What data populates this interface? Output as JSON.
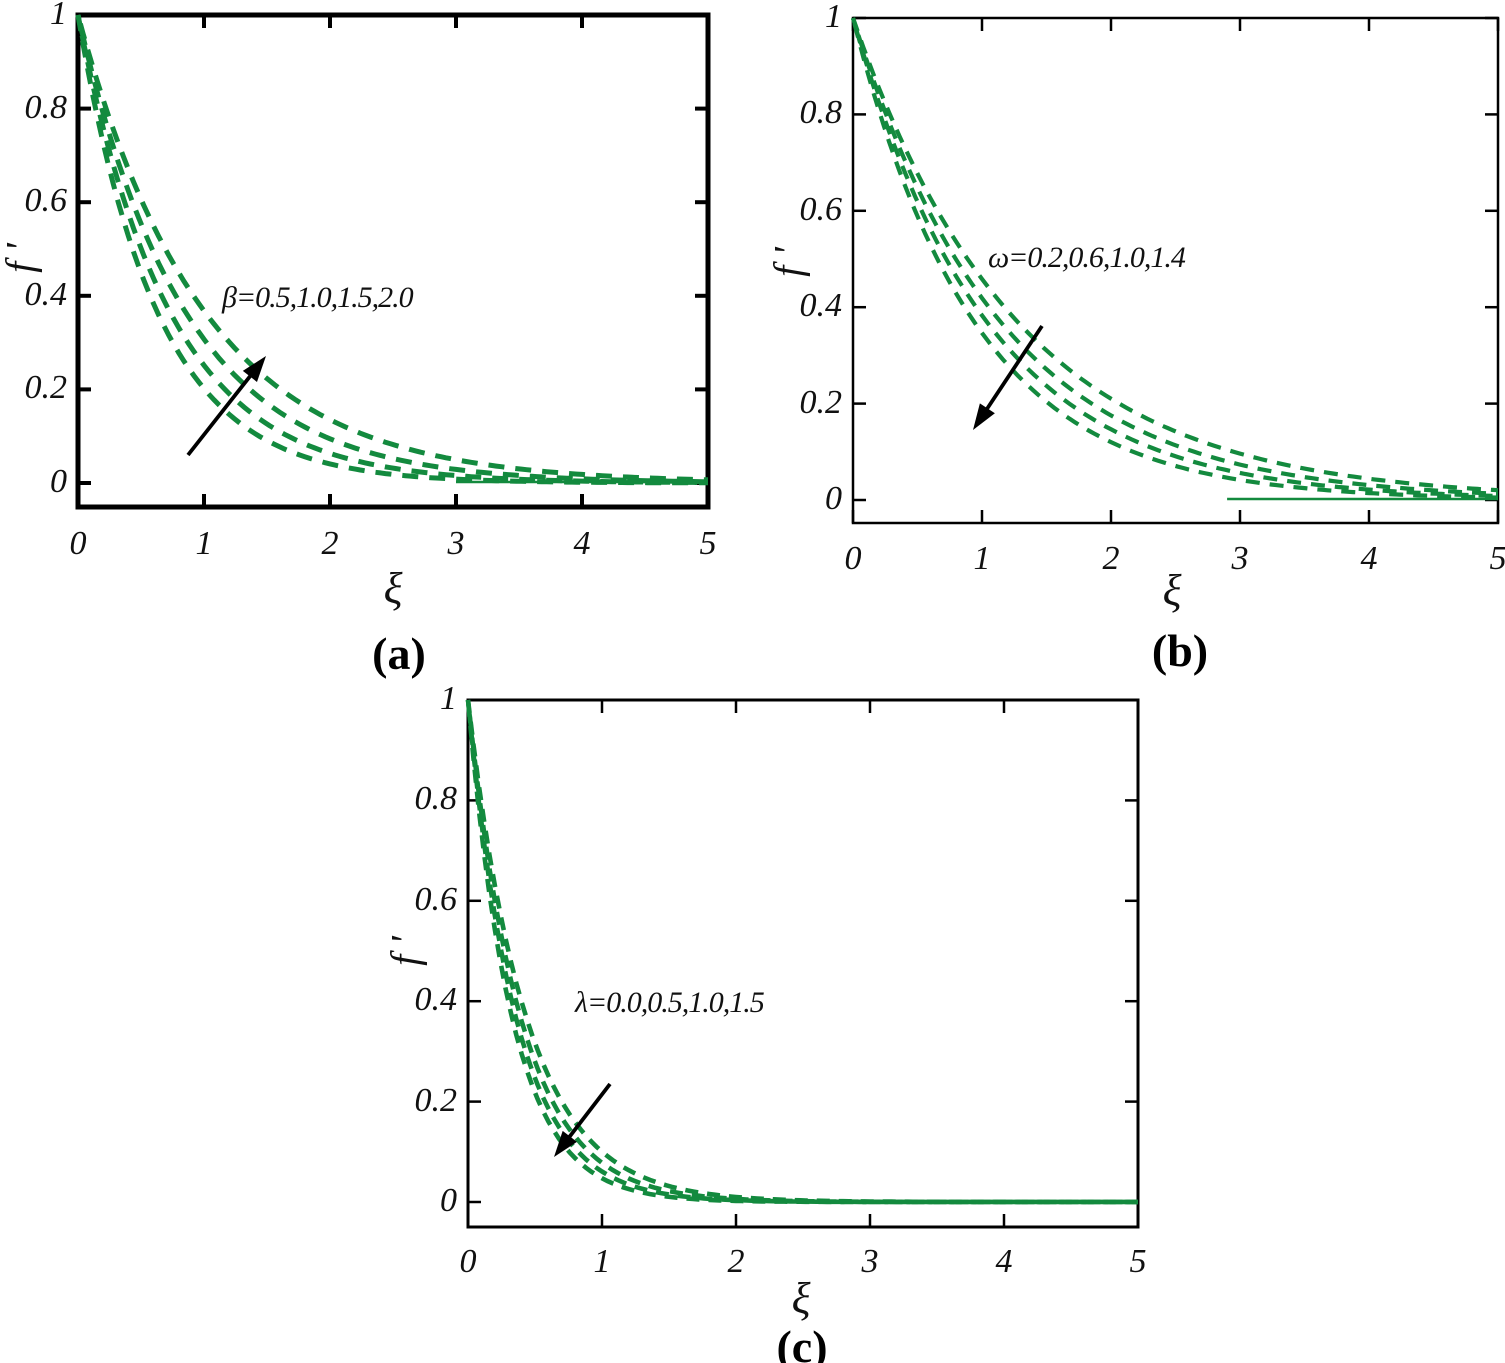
{
  "figure": {
    "background": "#ffffff",
    "curve_color": "#138a3e",
    "axis_color": "#000000",
    "arrow_color": "#000000"
  },
  "chart_data": [
    {
      "id": "a",
      "type": "line",
      "caption": "(a)",
      "xlabel": "ξ",
      "ylabel": "f '",
      "annotation": "β=0.5,1.0,1.5,2.0",
      "arrow_meaning": "increasing β raises the curves",
      "arrow_direction": "up-right",
      "line_style": "dashed",
      "xlim": [
        0,
        5
      ],
      "ylim": [
        -0.05,
        1
      ],
      "xticks": [
        "0",
        "1",
        "2",
        "3",
        "4",
        "5"
      ],
      "yticks": [
        "0",
        "0.2",
        "0.4",
        "0.6",
        "0.8",
        "1"
      ],
      "grid": "off",
      "legend": "none",
      "series": [
        {
          "name": "β=0.5",
          "k": 1.6,
          "x": [
            0,
            1,
            2,
            3,
            4,
            5
          ],
          "y": [
            1,
            0.202,
            0.041,
            0.008,
            0.002,
            0.0
          ]
        },
        {
          "name": "β=1.0",
          "k": 1.38,
          "x": [
            0,
            1,
            2,
            3,
            4,
            5
          ],
          "y": [
            1,
            0.252,
            0.063,
            0.016,
            0.004,
            0.001
          ]
        },
        {
          "name": "β=1.5",
          "k": 1.18,
          "x": [
            0,
            1,
            2,
            3,
            4,
            5
          ],
          "y": [
            1,
            0.307,
            0.094,
            0.029,
            0.009,
            0.003
          ]
        },
        {
          "name": "β=2.0",
          "k": 1.0,
          "x": [
            0,
            1,
            2,
            3,
            4,
            5
          ],
          "y": [
            1,
            0.368,
            0.135,
            0.05,
            0.018,
            0.007
          ]
        }
      ]
    },
    {
      "id": "b",
      "type": "line",
      "caption": "(b)",
      "xlabel": "ξ",
      "ylabel": "f '",
      "annotation": "ω=0.2,0.6,1.0,1.4",
      "arrow_meaning": "increasing ω lowers the curves",
      "arrow_direction": "down-left",
      "line_style": "dashed",
      "xlim": [
        0,
        5
      ],
      "ylim": [
        -0.05,
        1
      ],
      "xticks": [
        "0",
        "1",
        "2",
        "3",
        "4",
        "5"
      ],
      "yticks": [
        "0",
        "0.2",
        "0.4",
        "0.6",
        "0.8",
        "1"
      ],
      "grid": "off",
      "legend": "none",
      "series": [
        {
          "name": "ω=0.2",
          "k": 0.78,
          "x": [
            0,
            1,
            2,
            3,
            4,
            5
          ],
          "y": [
            1,
            0.458,
            0.21,
            0.096,
            0.044,
            0.02
          ]
        },
        {
          "name": "ω=0.6",
          "k": 0.87,
          "x": [
            0,
            1,
            2,
            3,
            4,
            5
          ],
          "y": [
            1,
            0.419,
            0.176,
            0.074,
            0.031,
            0.013
          ]
        },
        {
          "name": "ω=1.0",
          "k": 0.96,
          "x": [
            0,
            1,
            2,
            3,
            4,
            5
          ],
          "y": [
            1,
            0.383,
            0.147,
            0.056,
            0.022,
            0.008
          ]
        },
        {
          "name": "ω=1.4",
          "k": 1.06,
          "x": [
            0,
            1,
            2,
            3,
            4,
            5
          ],
          "y": [
            1,
            0.346,
            0.12,
            0.042,
            0.014,
            0.005
          ]
        }
      ]
    },
    {
      "id": "c",
      "type": "line",
      "caption": "(c)",
      "xlabel": "ξ",
      "ylabel": "f '",
      "annotation": "λ=0.0,0.5,1.0,1.5",
      "arrow_meaning": "increasing λ lowers the curves",
      "arrow_direction": "down-left",
      "line_style": "dashed",
      "xlim": [
        0,
        5
      ],
      "ylim": [
        -0.05,
        1
      ],
      "xticks": [
        "0",
        "1",
        "2",
        "3",
        "4",
        "5"
      ],
      "yticks": [
        "0",
        "0.2",
        "0.4",
        "0.6",
        "0.8",
        "1"
      ],
      "grid": "off",
      "legend": "none",
      "series": [
        {
          "name": "λ=0.0",
          "k": 2.3,
          "x": [
            0,
            1,
            2,
            3,
            4,
            5
          ],
          "y": [
            1,
            0.1,
            0.01,
            0.001,
            0.0,
            0.0
          ]
        },
        {
          "name": "λ=0.5",
          "k": 2.55,
          "x": [
            0,
            1,
            2,
            3,
            4,
            5
          ],
          "y": [
            1,
            0.078,
            0.006,
            0.0,
            0.0,
            0.0
          ]
        },
        {
          "name": "λ=1.0",
          "k": 2.8,
          "x": [
            0,
            1,
            2,
            3,
            4,
            5
          ],
          "y": [
            1,
            0.061,
            0.004,
            0.0,
            0.0,
            0.0
          ]
        },
        {
          "name": "λ=1.5",
          "k": 3.05,
          "x": [
            0,
            1,
            2,
            3,
            4,
            5
          ],
          "y": [
            1,
            0.047,
            0.002,
            0.0,
            0.0,
            0.0
          ]
        }
      ]
    }
  ]
}
